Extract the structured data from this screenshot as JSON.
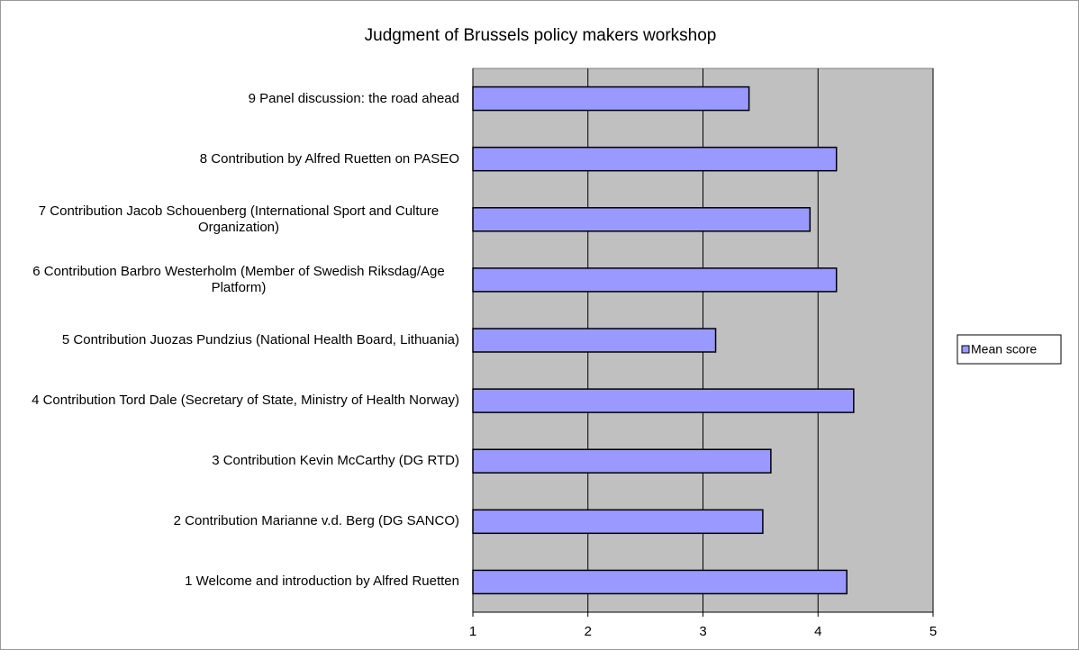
{
  "chart_data": {
    "type": "barh",
    "title": "Judgment of Brussels policy makers workshop",
    "categories": [
      "9 Panel discussion: the road ahead",
      "8 Contribution by Alfred Ruetten on PASEO",
      "7 Contribution Jacob Schouenberg (International Sport and Culture Organization)",
      "6 Contribution Barbro Westerholm (Member of Swedish Riksdag/Age Platform)",
      "5 Contribution Juozas Pundzius (National Health Board, Lithuania)",
      "4 Contribution Tord Dale (Secretary of State, Ministry of Health Norway)",
      "3 Contribution Kevin McCarthy (DG RTD)",
      "2 Contribution Marianne v.d. Berg (DG SANCO)",
      "1 Welcome and introduction by Alfred Ruetten"
    ],
    "series": [
      {
        "name": "Mean score",
        "color": "#9999ff",
        "values": [
          3.4,
          4.16,
          3.93,
          4.16,
          3.11,
          4.31,
          3.59,
          3.52,
          4.25
        ]
      }
    ],
    "xlim": [
      1,
      5
    ],
    "xticks": [
      1,
      2,
      3,
      4,
      5
    ],
    "grid": true,
    "legend": "right",
    "plot_background": "#c0c0c0"
  }
}
